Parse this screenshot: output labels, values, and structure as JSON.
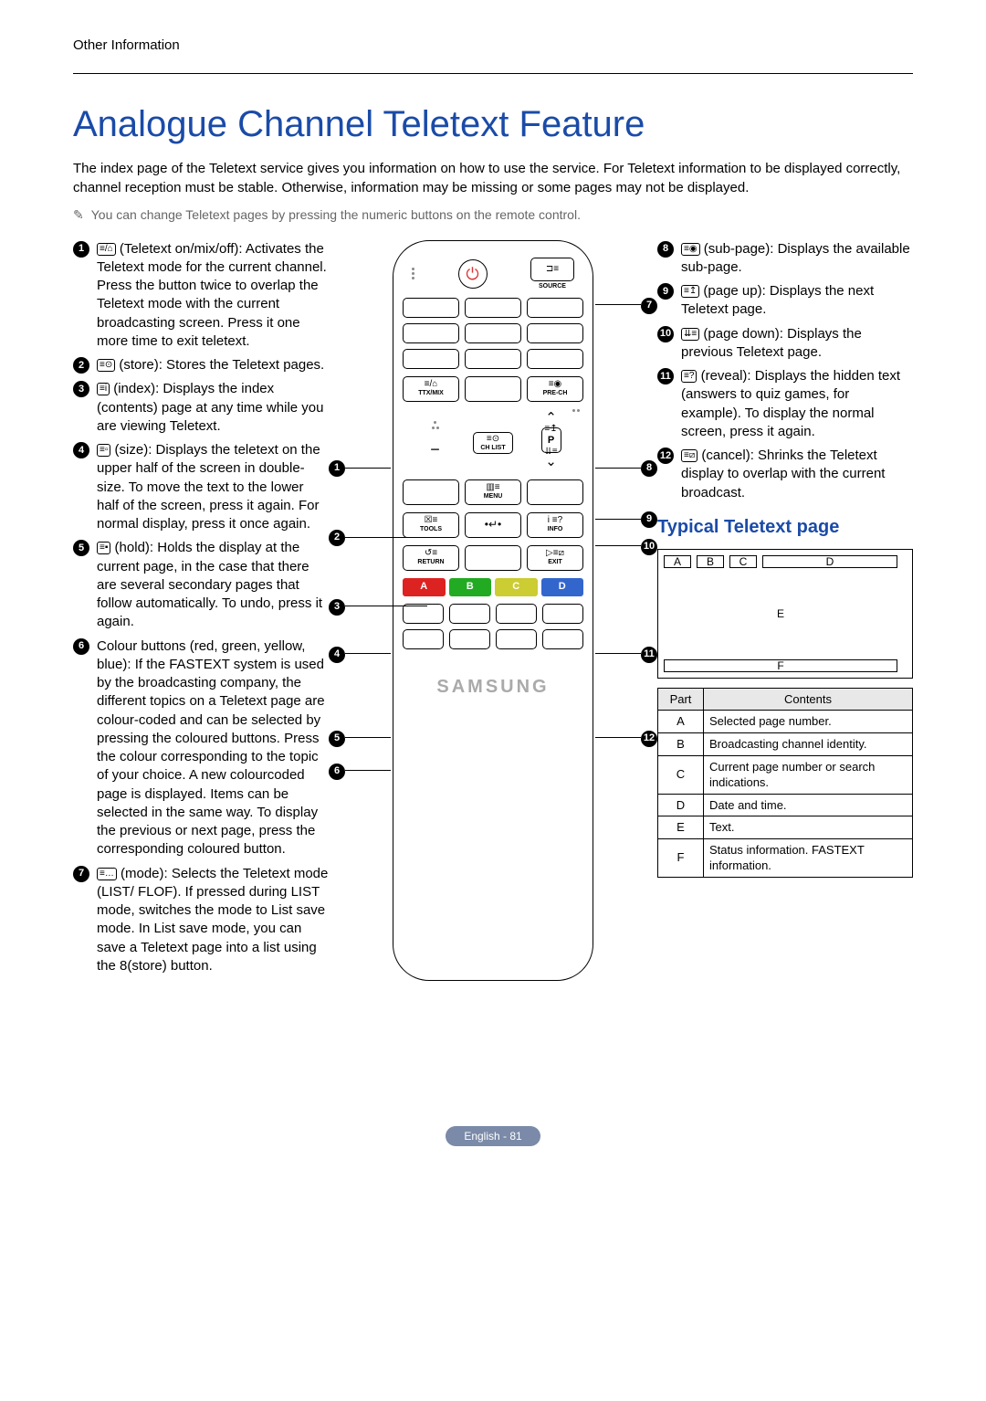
{
  "section_label": "Other Information",
  "title": "Analogue Channel Teletext Feature",
  "intro_text": "The index page of the Teletext service gives you information on how to use the service. For Teletext information to be displayed correctly, channel reception must be stable. Otherwise, information may be missing or some pages may not be displayed.",
  "note_text": "You can change Teletext pages by pressing the numeric buttons on the remote control.",
  "left_items": [
    {
      "num": "1",
      "glyph": "≡/⌂",
      "text": "(Teletext on/mix/off): Activates the Teletext mode for the current channel. Press the button twice to overlap the Teletext mode with the current broadcasting screen. Press it one more time to exit teletext."
    },
    {
      "num": "2",
      "glyph": "≡⊙",
      "text": "(store): Stores the Teletext pages."
    },
    {
      "num": "3",
      "glyph": "≡i",
      "text": "(index): Displays the index (contents) page at any time while you are viewing Teletext."
    },
    {
      "num": "4",
      "glyph": "≡▫",
      "text": "(size): Displays the teletext on the upper half of the screen in double-size. To move the text to the lower half of the screen, press it again. For normal display, press it once again."
    },
    {
      "num": "5",
      "glyph": "≡▪",
      "text": "(hold): Holds the display at the current page, in the case that there are several secondary pages that follow automatically. To undo, press it again."
    },
    {
      "num": "6",
      "glyph": "",
      "text": "Colour buttons (red, green, yellow, blue): If the FASTEXT system is used by the broadcasting company, the different topics on a Teletext page are colour-coded and can be selected by pressing the coloured buttons. Press the colour corresponding to the topic of your choice. A new colourcoded page is displayed. Items can be selected in the same way. To display the previous or next page, press the corresponding coloured button."
    },
    {
      "num": "7",
      "glyph": "≡…",
      "text": "(mode): Selects the Teletext mode (LIST/ FLOF). If pressed during LIST mode, switches the mode to List save mode. In List save mode, you can save a Teletext page into a list using the 8(store) button."
    }
  ],
  "right_items": [
    {
      "num": "8",
      "glyph": "≡◉",
      "text": "(sub-page): Displays the available sub-page."
    },
    {
      "num": "9",
      "glyph": "≡↥",
      "text": "(page up): Displays the next Teletext page."
    },
    {
      "num": "10",
      "glyph": "⇊≡",
      "text": "(page down): Displays the previous Teletext page."
    },
    {
      "num": "11",
      "glyph": "≡?",
      "text": "(reveal): Displays the hidden text (answers to quiz games, for example). To display the normal screen, press it again."
    },
    {
      "num": "12",
      "glyph": "≡⧄",
      "text": "(cancel): Shrinks the Teletext display to overlap with the current broadcast."
    }
  ],
  "subhead": "Typical Teletext page",
  "ttx_regions": {
    "A": "A",
    "B": "B",
    "C": "C",
    "D": "D",
    "E": "E",
    "F": "F"
  },
  "table_header": {
    "part": "Part",
    "contents": "Contents"
  },
  "table_rows": [
    {
      "part": "A",
      "contents": "Selected page number."
    },
    {
      "part": "B",
      "contents": "Broadcasting channel identity."
    },
    {
      "part": "C",
      "contents": "Current page number or search indications."
    },
    {
      "part": "D",
      "contents": "Date and time."
    },
    {
      "part": "E",
      "contents": "Text."
    },
    {
      "part": "F",
      "contents": "Status information. FASTEXT information."
    }
  ],
  "remote": {
    "source": "SOURCE",
    "ttxmix": "TTX/MIX",
    "prech": "PRE-CH",
    "chlist": "CH LIST",
    "p": "P",
    "menu": "MENU",
    "tools": "TOOLS",
    "info": "INFO",
    "return": "RETURN",
    "exit": "EXIT",
    "brand": "SAMSUNG",
    "colors": {
      "A_bg": "#d22",
      "B_bg": "#2a2",
      "C_bg": "#cc3",
      "D_bg": "#36c"
    },
    "A": "A",
    "B": "B",
    "C": "C",
    "D": "D"
  },
  "footer": "English - 81"
}
